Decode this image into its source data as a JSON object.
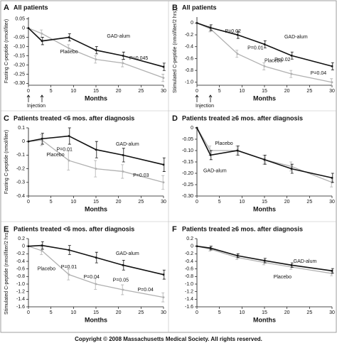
{
  "chart_data": [
    {
      "type": "line",
      "letter": "A",
      "title": "All patients",
      "xlabel": "Months",
      "ylabel": "Fasting C-peptide (nmol/liter)",
      "injection": "Injection",
      "x": [
        0,
        3,
        9,
        15,
        21,
        30
      ],
      "xlim": [
        0,
        30
      ],
      "xticks": [
        0,
        5,
        10,
        15,
        20,
        25,
        30
      ],
      "ylim": [
        -0.31,
        0.06
      ],
      "yticks": [
        0.05,
        0,
        -0.05,
        {
          "value": -0.1,
          "label": "-0.10"
        },
        -0.15,
        {
          "value": -0.2,
          "label": "-0.20"
        },
        -0.25,
        {
          "value": -0.3,
          "label": "-0.30"
        }
      ],
      "series": [
        {
          "name": "GAD-alum",
          "color": "#111111",
          "values": [
            0,
            -0.07,
            -0.05,
            -0.12,
            -0.15,
            -0.21
          ],
          "errors": [
            0,
            0.02,
            0.02,
            0.02,
            0.02,
            0.02
          ]
        },
        {
          "name": "Placebo",
          "color": "#b0b0b0",
          "values": [
            0,
            -0.03,
            -0.11,
            -0.17,
            -0.19,
            -0.27
          ],
          "errors": [
            0,
            0.02,
            0.02,
            0.02,
            0.02,
            0.02
          ]
        }
      ],
      "annotations": [
        "P=0.045"
      ]
    },
    {
      "type": "line",
      "letter": "B",
      "title": "All patients",
      "xlabel": "Months",
      "ylabel": "Stimulated C-peptide (nmol/liter/2 hrs)",
      "injection": "Injection",
      "x": [
        0,
        3,
        9,
        15,
        21,
        30
      ],
      "xlim": [
        0,
        30
      ],
      "xticks": [
        0,
        5,
        10,
        15,
        20,
        25,
        30
      ],
      "ylim": [
        -1.05,
        0.1
      ],
      "yticks": [
        0,
        -0.2,
        -0.4,
        -0.6,
        -0.8,
        {
          "value": -1.0,
          "label": "-1.0"
        }
      ],
      "series": [
        {
          "name": "GAD-alum",
          "color": "#111111",
          "values": [
            0,
            -0.08,
            -0.2,
            -0.36,
            -0.55,
            -0.73
          ],
          "errors": [
            0,
            0.05,
            0.06,
            0.06,
            0.06,
            0.06
          ]
        },
        {
          "name": "Placebo",
          "color": "#b0b0b0",
          "values": [
            0,
            -0.1,
            -0.52,
            -0.73,
            -0.86,
            -1.0
          ],
          "errors": [
            0,
            0.05,
            0.06,
            0.06,
            0.06,
            0.06
          ]
        }
      ],
      "annotations": [
        "P=0.02",
        "P=0.01",
        "P=0.02",
        "P=0.04"
      ]
    },
    {
      "type": "line",
      "letter": "C",
      "title": "Patients treated <6 mos. after diagnosis",
      "xlabel": "Months",
      "ylabel": "Fasting C-peptide (nmol/liter)",
      "x": [
        0,
        3,
        9,
        15,
        21,
        30
      ],
      "xlim": [
        0,
        30
      ],
      "xticks": [
        0,
        5,
        10,
        15,
        20,
        25,
        30
      ],
      "ylim": [
        -0.4,
        0.1
      ],
      "yticks": [
        0.1,
        0,
        -0.1,
        -0.2,
        -0.3,
        -0.4
      ],
      "series": [
        {
          "name": "GAD-alum",
          "color": "#111111",
          "values": [
            0,
            0.02,
            0.04,
            -0.06,
            -0.1,
            -0.17
          ],
          "errors": [
            0,
            0.04,
            0.06,
            0.06,
            0.05,
            0.05
          ]
        },
        {
          "name": "Placebo",
          "color": "#b0b0b0",
          "values": [
            0,
            0.01,
            -0.14,
            -0.2,
            -0.22,
            -0.3
          ],
          "errors": [
            0,
            0.04,
            0.07,
            0.06,
            0.05,
            0.05
          ]
        }
      ],
      "annotations": [
        "P=0.01",
        "P=0.03"
      ]
    },
    {
      "type": "line",
      "letter": "D",
      "title": "Patients treated ≥6 mos. after diagnosis",
      "xlabel": "Months",
      "ylabel": "",
      "x": [
        0,
        3,
        9,
        15,
        21,
        30
      ],
      "xlim": [
        0,
        30
      ],
      "xticks": [
        0,
        5,
        10,
        15,
        20,
        25,
        30
      ],
      "ylim": [
        -0.3,
        0.0
      ],
      "yticks": [
        0,
        -0.05,
        {
          "value": -0.1,
          "label": "-0.10"
        },
        -0.15,
        {
          "value": -0.2,
          "label": "-0.20"
        },
        -0.25,
        {
          "value": -0.3,
          "label": "-0.30"
        }
      ],
      "series": [
        {
          "name": "GAD-alum",
          "color": "#111111",
          "values": [
            0,
            -0.12,
            -0.1,
            -0.14,
            -0.18,
            -0.22
          ],
          "errors": [
            0,
            0.02,
            0.02,
            0.02,
            0.02,
            0.02
          ]
        },
        {
          "name": "Placebo",
          "color": "#b0b0b0",
          "values": [
            0,
            -0.1,
            -0.1,
            -0.14,
            -0.17,
            -0.24
          ],
          "errors": [
            0,
            0.02,
            0.02,
            0.02,
            0.02,
            0.02
          ]
        }
      ],
      "annotations": []
    },
    {
      "type": "line",
      "letter": "E",
      "title": "Patients treated <6 mos. after diagnosis",
      "xlabel": "Months",
      "ylabel": "Stimulated C-peptide (nmol/liter/2 hrs)",
      "x": [
        0,
        3,
        9,
        15,
        21,
        30
      ],
      "xlim": [
        0,
        30
      ],
      "xticks": [
        0,
        5,
        10,
        15,
        20,
        25,
        30
      ],
      "ylim": [
        -1.6,
        0.2
      ],
      "yticks": [
        0.2,
        0,
        -0.2,
        -0.4,
        -0.6,
        -0.8,
        {
          "value": -1.0,
          "label": "-1.0"
        },
        -1.2,
        -1.4,
        -1.6
      ],
      "series": [
        {
          "name": "GAD-alum",
          "color": "#111111",
          "values": [
            0,
            0.02,
            -0.1,
            -0.3,
            -0.5,
            -0.75
          ],
          "errors": [
            0,
            0.1,
            0.12,
            0.14,
            0.13,
            0.12
          ]
        },
        {
          "name": "Placebo",
          "color": "#b0b0b0",
          "values": [
            0,
            -0.12,
            -0.75,
            -1.0,
            -1.15,
            -1.35
          ],
          "errors": [
            0,
            0.1,
            0.14,
            0.14,
            0.13,
            0.12
          ]
        }
      ],
      "annotations": [
        "P=0.01",
        "P=0.04",
        "P=0.05",
        "P=0.04"
      ]
    },
    {
      "type": "line",
      "letter": "F",
      "title": "Patients treated ≥6 mos. after diagnosis",
      "xlabel": "Months",
      "ylabel": "",
      "x": [
        0,
        3,
        9,
        15,
        21,
        30
      ],
      "xlim": [
        0,
        30
      ],
      "xticks": [
        0,
        5,
        10,
        15,
        20,
        25,
        30
      ],
      "ylim": [
        -1.6,
        0.2
      ],
      "yticks": [
        0.2,
        0,
        -0.2,
        -0.4,
        -0.6,
        -0.8,
        {
          "value": -1.0,
          "label": "-1.0"
        },
        -1.2,
        -1.4,
        -1.6
      ],
      "series": [
        {
          "name": "GAD-alum",
          "color": "#111111",
          "values": [
            0,
            -0.05,
            -0.25,
            -0.38,
            -0.5,
            -0.65
          ],
          "errors": [
            0,
            0.05,
            0.05,
            0.06,
            0.06,
            0.06
          ]
        },
        {
          "name": "Placebo",
          "color": "#b0b0b0",
          "values": [
            0,
            -0.08,
            -0.3,
            -0.43,
            -0.55,
            -0.72
          ],
          "errors": [
            0,
            0.05,
            0.05,
            0.06,
            0.06,
            0.06
          ]
        }
      ],
      "annotations": []
    }
  ],
  "copyright": "Copyright © 2008 Massachusetts Medical Society. All rights reserved."
}
